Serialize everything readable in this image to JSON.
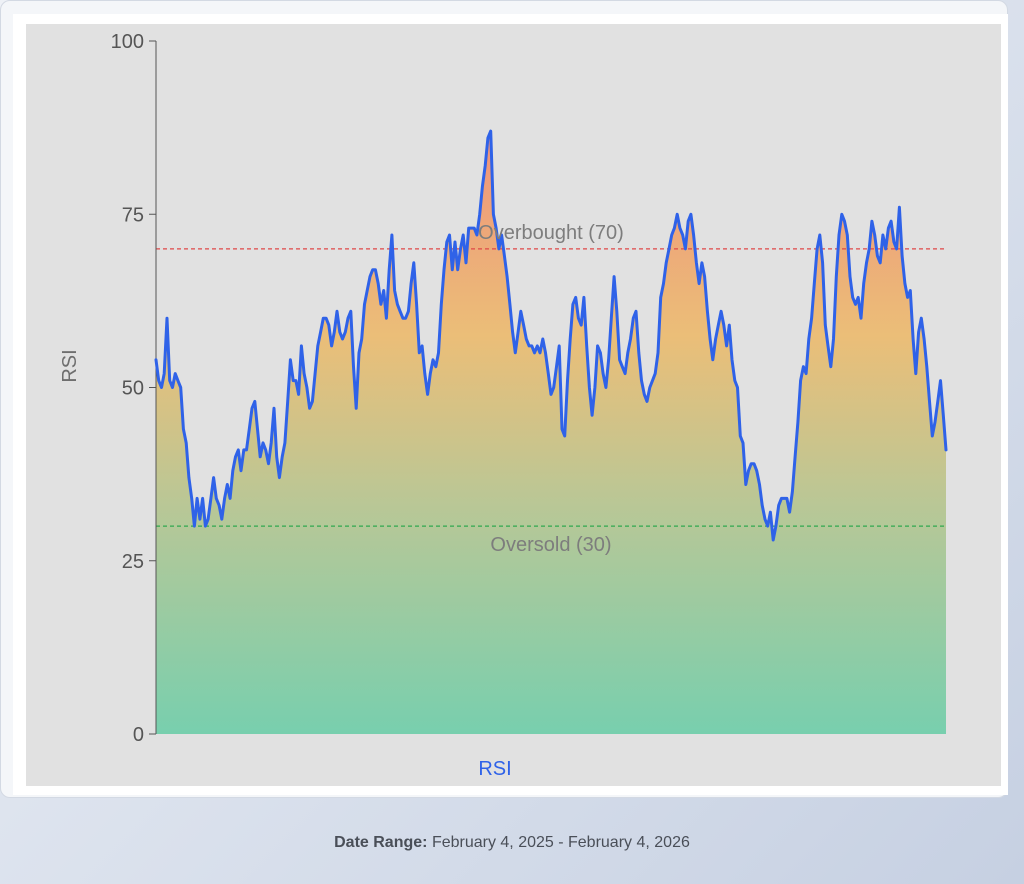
{
  "chart_data": {
    "type": "area",
    "ylabel": "RSI",
    "xlabel": "RSI",
    "ylim": [
      0,
      100
    ],
    "yticks": [
      0,
      25,
      50,
      75,
      100
    ],
    "grid": false,
    "reference_lines": [
      {
        "label": "Overbought (70)",
        "value": 70,
        "color": "#e04848"
      },
      {
        "label": "Oversold (30)",
        "value": 30,
        "color": "#2fa84f"
      }
    ],
    "series": [
      {
        "name": "RSI",
        "color": "#2f62e8",
        "values": [
          54,
          51,
          50,
          52,
          60,
          51,
          50,
          52,
          51,
          50,
          44,
          42,
          37,
          34,
          30,
          34,
          31,
          34,
          30,
          31,
          34,
          37,
          34,
          33,
          31,
          34,
          36,
          34,
          38,
          40,
          41,
          38,
          41,
          41,
          44,
          47,
          48,
          44,
          40,
          42,
          41,
          39,
          42,
          47,
          40,
          37,
          40,
          42,
          48,
          54,
          51,
          51,
          49,
          56,
          52,
          50,
          47,
          48,
          52,
          56,
          58,
          60,
          60,
          59,
          56,
          58,
          61,
          58,
          57,
          58,
          60,
          61,
          53,
          47,
          55,
          57,
          62,
          64,
          66,
          67,
          67,
          65,
          62,
          64,
          60,
          67,
          72,
          64,
          62,
          61,
          60,
          60,
          61,
          65,
          68,
          62,
          55,
          56,
          52,
          49,
          52,
          54,
          53,
          55,
          62,
          67,
          71,
          72,
          67,
          71,
          67,
          70,
          72,
          68,
          73,
          73,
          73,
          72,
          75,
          79,
          82,
          86,
          87,
          75,
          73,
          70,
          72,
          69,
          66,
          62,
          58,
          55,
          58,
          61,
          59,
          57,
          56,
          56,
          55,
          56,
          55,
          57,
          55,
          52,
          49,
          50,
          53,
          56,
          44,
          43,
          51,
          57,
          62,
          63,
          60,
          59,
          63,
          56,
          50,
          46,
          50,
          56,
          55,
          52,
          50,
          54,
          60,
          66,
          61,
          54,
          53,
          52,
          55,
          57,
          60,
          61,
          55,
          51,
          49,
          48,
          50,
          51,
          52,
          55,
          63,
          65,
          68,
          70,
          72,
          73,
          75,
          73,
          72,
          70,
          74,
          75,
          72,
          68,
          65,
          68,
          66,
          61,
          57,
          54,
          57,
          59,
          61,
          59,
          56,
          59,
          54,
          51,
          50,
          43,
          42,
          36,
          38,
          39,
          39,
          38,
          36,
          33,
          31,
          30,
          32,
          28,
          30,
          33,
          34,
          34,
          34,
          32,
          35,
          40,
          45,
          51,
          53,
          52,
          57,
          60,
          65,
          70,
          72,
          68,
          59,
          56,
          53,
          57,
          66,
          72,
          75,
          74,
          72,
          66,
          63,
          62,
          63,
          60,
          65,
          68,
          70,
          74,
          72,
          69,
          68,
          72,
          70,
          73,
          74,
          71,
          70,
          76,
          69,
          65,
          63,
          64,
          57,
          52,
          58,
          60,
          57,
          53,
          48,
          43,
          45,
          48,
          51,
          46,
          41
        ]
      }
    ]
  },
  "footer": {
    "label": "Date Range:",
    "value": "February 4, 2025 - February 4, 2026"
  }
}
